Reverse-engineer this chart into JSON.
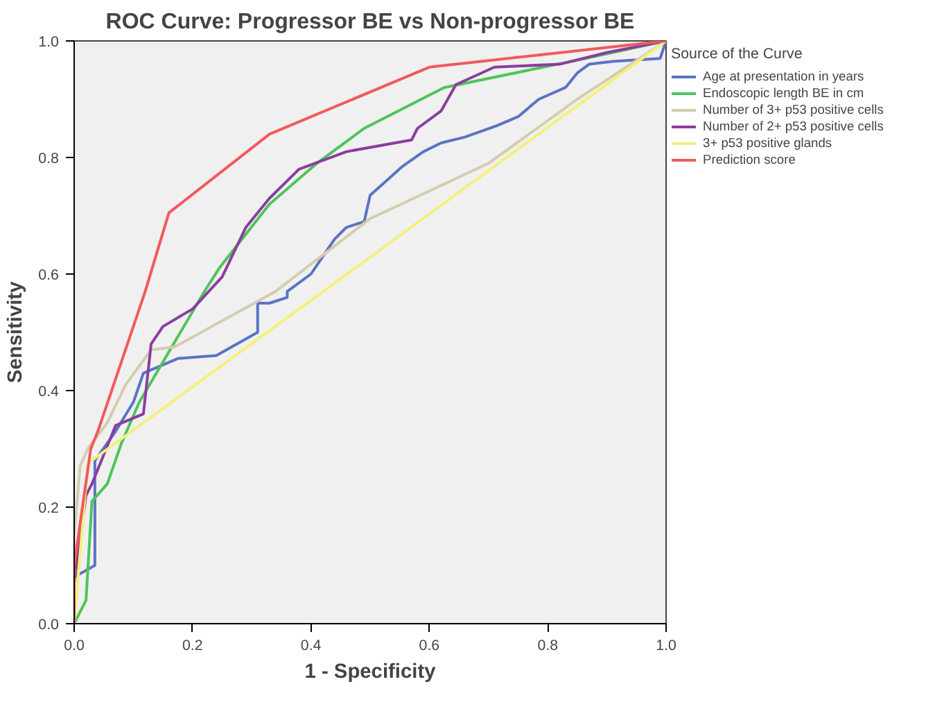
{
  "chart_data": {
    "type": "line",
    "title": "ROC Curve: Progressor BE vs Non-progressor BE",
    "xlabel": "1 - Specificity",
    "ylabel": "Sensitivity",
    "legend_title": "Source of the Curve",
    "legend": "right",
    "grid": false,
    "marker": "none",
    "line_style": "solid",
    "xlim": [
      0,
      1
    ],
    "ylim": [
      0,
      1
    ],
    "xticks": [
      {
        "value": 0,
        "label": "0.0"
      },
      {
        "value": 0.2,
        "label": "0.2"
      },
      {
        "value": 0.4,
        "label": "0.4"
      },
      {
        "value": 0.6,
        "label": "0.6"
      },
      {
        "value": 0.8,
        "label": "0.8"
      },
      {
        "value": 1,
        "label": "1.0"
      }
    ],
    "yticks": [
      {
        "value": 0,
        "label": "0.0"
      },
      {
        "value": 0.2,
        "label": "0.2"
      },
      {
        "value": 0.4,
        "label": "0.4"
      },
      {
        "value": 0.6,
        "label": "0.6"
      },
      {
        "value": 0.8,
        "label": "0.8"
      },
      {
        "value": 1,
        "label": "1.0"
      }
    ],
    "series": [
      {
        "name": "Age at presentation in years",
        "color": "#5a73c4",
        "x": [
          0,
          0,
          0.035,
          0.035,
          0.07,
          0.1,
          0.117,
          0.175,
          0.24,
          0.31,
          0.31,
          0.33,
          0.36,
          0.36,
          0.4,
          0.42,
          0.44,
          0.46,
          0.49,
          0.5,
          0.555,
          0.59,
          0.62,
          0.66,
          0.715,
          0.75,
          0.785,
          0.83,
          0.85,
          0.87,
          0.91,
          0.99,
          1
        ],
        "values": [
          0,
          0.08,
          0.1,
          0.28,
          0.33,
          0.38,
          0.43,
          0.455,
          0.46,
          0.5,
          0.55,
          0.55,
          0.56,
          0.57,
          0.6,
          0.63,
          0.66,
          0.68,
          0.69,
          0.735,
          0.785,
          0.81,
          0.825,
          0.835,
          0.855,
          0.87,
          0.9,
          0.92,
          0.945,
          0.96,
          0.965,
          0.97,
          1
        ]
      },
      {
        "name": "Endoscopic length BE in cm",
        "color": "#4ec45a",
        "x": [
          0,
          0.01,
          0.02,
          0.03,
          0.056,
          0.08,
          0.11,
          0.22,
          0.245,
          0.33,
          0.41,
          0.49,
          0.625,
          0.85,
          1
        ],
        "values": [
          0,
          0.02,
          0.04,
          0.21,
          0.24,
          0.31,
          0.38,
          0.57,
          0.61,
          0.72,
          0.79,
          0.85,
          0.92,
          0.967,
          1
        ]
      },
      {
        "name": "Number of 3+ p53 positive cells",
        "color": "#d4cdae",
        "x": [
          0,
          0,
          0.01,
          0.023,
          0.056,
          0.087,
          0.13,
          0.17,
          0.34,
          0.5,
          0.7,
          0.85,
          1
        ],
        "values": [
          0,
          0.15,
          0.27,
          0.3,
          0.345,
          0.41,
          0.47,
          0.475,
          0.57,
          0.695,
          0.79,
          0.9,
          1
        ]
      },
      {
        "name": "Number of 2+ p53 positive cells",
        "color": "#8a3e9e",
        "x": [
          0,
          0,
          0.02,
          0.03,
          0.07,
          0.117,
          0.13,
          0.15,
          0.2,
          0.25,
          0.29,
          0.33,
          0.38,
          0.46,
          0.57,
          0.58,
          0.62,
          0.645,
          0.71,
          0.82,
          0.9,
          1
        ],
        "values": [
          0,
          0.07,
          0.22,
          0.24,
          0.34,
          0.36,
          0.48,
          0.51,
          0.54,
          0.595,
          0.68,
          0.73,
          0.78,
          0.81,
          0.83,
          0.85,
          0.88,
          0.925,
          0.955,
          0.96,
          0.98,
          1
        ]
      },
      {
        "name": "3+ p53 positive glands",
        "color": "#f5f07a",
        "x": [
          0,
          0.023,
          1
        ],
        "values": [
          0,
          0.275,
          1
        ]
      },
      {
        "name": "Prediction score",
        "color": "#f2595a",
        "x": [
          0,
          0,
          0.028,
          0.04,
          0.12,
          0.16,
          0.33,
          0.6,
          1
        ],
        "values": [
          0,
          0.1,
          0.3,
          0.33,
          0.57,
          0.705,
          0.84,
          0.955,
          1
        ]
      }
    ]
  }
}
